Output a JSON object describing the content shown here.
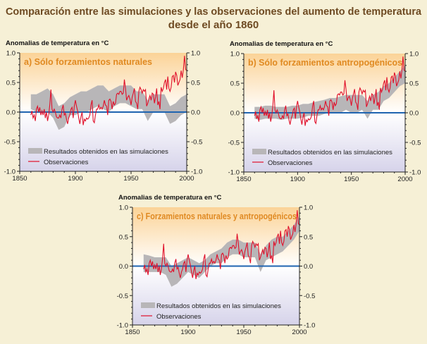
{
  "title_line1": "Comparación entre las simulaciones y las observaciones del aumento de temperatura",
  "title_line2": "desde el año 1860",
  "colors": {
    "observations": "#e0102a",
    "simulations": "#b8b6b8",
    "zero_line": "#1f64b0",
    "panel_title": "#e08a22",
    "background": "#f6f0d6"
  },
  "chart_data": [
    {
      "type": "area",
      "title": "a) Sólo forzamientos naturales",
      "ylabel": "Anomalias de temperatura en °C",
      "xlim": [
        1850,
        2000
      ],
      "ylim": [
        -1.0,
        1.0
      ],
      "xticks": [
        "1850",
        "1900",
        "1950",
        "2000"
      ],
      "yticks": [
        "1.0",
        "0.5",
        "0.0",
        "-0.5",
        "-1.0"
      ],
      "legend": {
        "simulations": "Resultados obtenidos en las simulaciones",
        "observations": "Observaciones",
        "placement": "bottom-left"
      },
      "band_years": [
        1860,
        1865,
        1870,
        1875,
        1880,
        1885,
        1890,
        1895,
        1900,
        1905,
        1910,
        1915,
        1920,
        1925,
        1930,
        1935,
        1940,
        1945,
        1950,
        1955,
        1960,
        1965,
        1970,
        1975,
        1980,
        1985,
        1990,
        1995,
        2000
      ],
      "band_low": [
        0.05,
        0.0,
        0.0,
        0.0,
        -0.1,
        -0.3,
        -0.25,
        -0.05,
        -0.05,
        0.0,
        0.0,
        0.05,
        0.1,
        0.05,
        0.0,
        0.1,
        0.15,
        0.15,
        0.1,
        0.05,
        0.05,
        -0.15,
        0.0,
        0.0,
        0.0,
        -0.2,
        -0.15,
        -0.05,
        0.0
      ],
      "band_high": [
        0.3,
        0.3,
        0.35,
        0.4,
        0.3,
        0.1,
        0.15,
        0.25,
        0.3,
        0.35,
        0.35,
        0.4,
        0.45,
        0.45,
        0.35,
        0.4,
        0.45,
        0.45,
        0.45,
        0.35,
        0.35,
        0.2,
        0.3,
        0.3,
        0.3,
        0.1,
        0.15,
        0.25,
        0.3
      ]
    },
    {
      "type": "area",
      "title": "b) Sólo forzamientos antropogénicos",
      "ylabel": "Anomalias de temperatura en °C",
      "xlim": [
        1850,
        2000
      ],
      "ylim": [
        -1.0,
        1.0
      ],
      "xticks": [
        "1850",
        "1900",
        "1950",
        "2000"
      ],
      "yticks": [
        "1.0",
        "0.5",
        "0.0",
        "-0.5",
        "-1.0"
      ],
      "legend": {
        "simulations": "Resultados obtenidos en las simulaciones",
        "observations": "Observaciones",
        "placement": "bottom-left"
      },
      "band_years": [
        1860,
        1865,
        1870,
        1875,
        1880,
        1885,
        1890,
        1895,
        1900,
        1905,
        1910,
        1915,
        1920,
        1925,
        1930,
        1935,
        1940,
        1945,
        1950,
        1955,
        1960,
        1965,
        1970,
        1975,
        1980,
        1985,
        1990,
        1995,
        2000
      ],
      "band_low": [
        -0.1,
        -0.12,
        -0.1,
        -0.1,
        -0.1,
        -0.12,
        -0.1,
        -0.1,
        -0.1,
        -0.08,
        -0.05,
        -0.05,
        -0.05,
        -0.02,
        0.0,
        0.0,
        0.0,
        0.05,
        0.0,
        0.0,
        0.05,
        -0.1,
        0.05,
        0.05,
        0.2,
        0.25,
        0.35,
        0.45,
        0.5
      ],
      "band_high": [
        0.1,
        0.1,
        0.12,
        0.12,
        0.1,
        0.1,
        0.1,
        0.12,
        0.12,
        0.15,
        0.15,
        0.18,
        0.2,
        0.22,
        0.25,
        0.25,
        0.28,
        0.3,
        0.3,
        0.3,
        0.3,
        0.2,
        0.3,
        0.35,
        0.45,
        0.5,
        0.6,
        0.7,
        0.8
      ]
    },
    {
      "type": "area",
      "title": "c) Forzamientos naturales y antropogénicos",
      "ylabel": "Anomalias de temperatura en °C",
      "xlim": [
        1850,
        2000
      ],
      "ylim": [
        -1.0,
        1.0
      ],
      "xticks": [
        "1850",
        "1900",
        "1950",
        "2000"
      ],
      "yticks": [
        "1.0",
        "0.5",
        "0.0",
        "-0.5",
        "-1.0"
      ],
      "legend": {
        "simulations": "Resultados obtenidos en las simulaciones",
        "observations": "Observaciones",
        "placement": "bottom-left"
      },
      "band_years": [
        1860,
        1865,
        1870,
        1875,
        1880,
        1885,
        1890,
        1895,
        1900,
        1905,
        1910,
        1915,
        1920,
        1925,
        1930,
        1935,
        1940,
        1945,
        1950,
        1955,
        1960,
        1965,
        1970,
        1975,
        1980,
        1985,
        1990,
        1995,
        2000
      ],
      "band_low": [
        -0.1,
        -0.1,
        -0.1,
        -0.1,
        -0.15,
        -0.35,
        -0.3,
        -0.2,
        -0.1,
        -0.15,
        -0.2,
        -0.1,
        0.0,
        0.05,
        0.05,
        0.15,
        0.2,
        0.2,
        0.15,
        0.15,
        0.15,
        -0.1,
        0.1,
        0.15,
        0.2,
        0.25,
        0.35,
        0.45,
        0.6
      ],
      "band_high": [
        0.2,
        0.18,
        0.15,
        0.15,
        0.15,
        0.0,
        0.05,
        0.1,
        0.15,
        0.1,
        0.05,
        0.1,
        0.2,
        0.25,
        0.3,
        0.4,
        0.45,
        0.45,
        0.4,
        0.4,
        0.4,
        0.2,
        0.35,
        0.45,
        0.5,
        0.5,
        0.6,
        0.7,
        0.85
      ]
    }
  ],
  "observations": {
    "start_year": 1860,
    "values": [
      -0.05,
      0.02,
      -0.1,
      -0.05,
      -0.15,
      0.05,
      0.1,
      0.0,
      0.08,
      -0.05,
      0.02,
      -0.05,
      0.05,
      -0.1,
      0.0,
      -0.15,
      -0.05,
      0.12,
      0.38,
      0.05,
      0.0,
      0.05,
      0.0,
      -0.08,
      -0.1,
      -0.1,
      -0.05,
      -0.1,
      0.05,
      0.12,
      -0.05,
      -0.02,
      -0.12,
      -0.2,
      -0.1,
      -0.05,
      0.05,
      0.08,
      -0.1,
      0.1,
      0.2,
      0.1,
      0.02,
      -0.1,
      -0.2,
      -0.08,
      0.0,
      -0.22,
      -0.12,
      -0.15,
      -0.1,
      -0.12,
      -0.1,
      -0.05,
      0.12,
      0.2,
      -0.15,
      -0.18,
      -0.05,
      0.05,
      0.05,
      0.12,
      0.05,
      0.08,
      0.05,
      0.1,
      0.2,
      0.12,
      0.1,
      -0.05,
      0.2,
      0.22,
      0.18,
      0.05,
      0.18,
      0.12,
      0.15,
      0.3,
      0.32,
      0.3,
      0.35,
      0.35,
      0.3,
      0.32,
      0.55,
      0.4,
      0.2,
      0.25,
      0.28,
      0.22,
      0.12,
      0.25,
      0.32,
      0.4,
      0.18,
      0.15,
      0.05,
      0.35,
      0.42,
      0.38,
      0.32,
      0.38,
      0.35,
      0.38,
      0.1,
      0.15,
      0.22,
      0.28,
      0.2,
      0.32,
      0.3,
      0.15,
      0.25,
      0.4,
      0.12,
      0.18,
      0.05,
      0.42,
      0.35,
      0.4,
      0.5,
      0.55,
      0.38,
      0.6,
      0.4,
      0.35,
      0.42,
      0.6,
      0.62,
      0.5,
      0.68,
      0.62,
      0.45,
      0.5,
      0.55,
      0.7,
      0.58,
      0.72,
      0.95,
      0.72,
      0.7
    ]
  }
}
